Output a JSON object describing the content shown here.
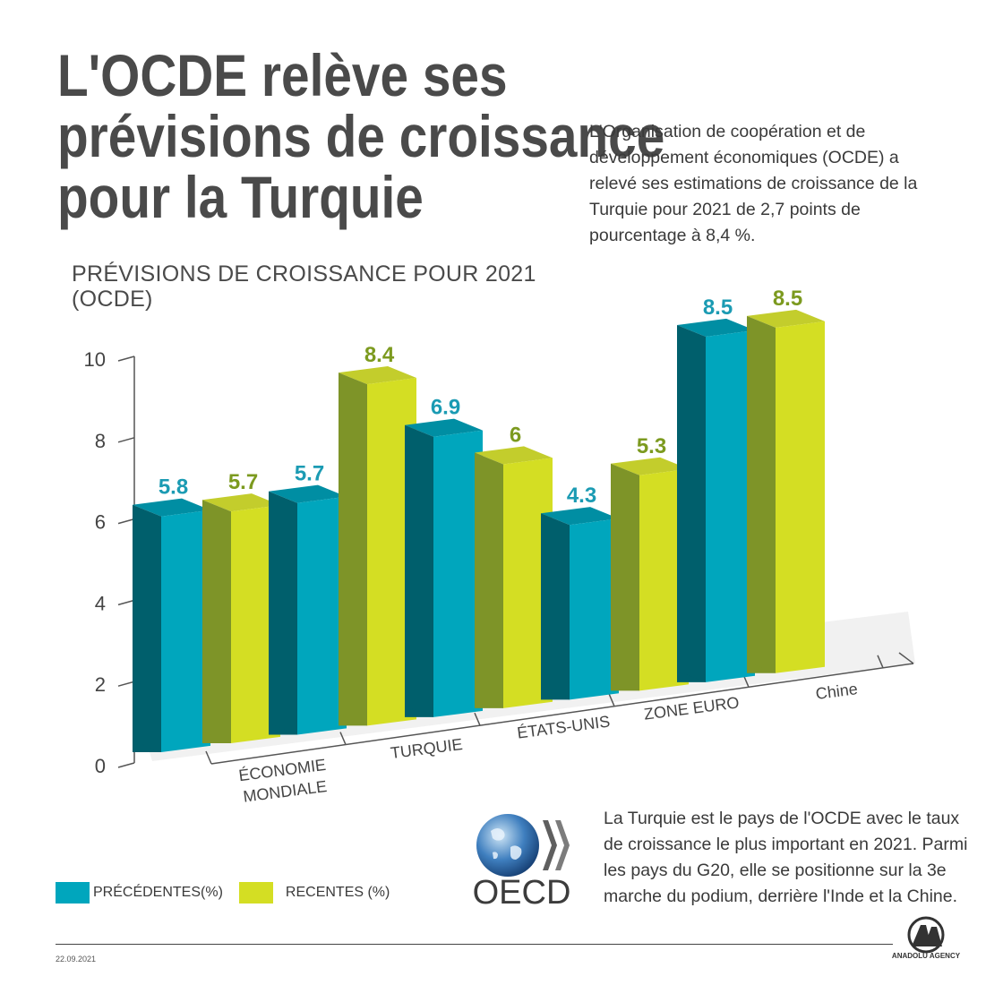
{
  "title": "L'OCDE relève ses prévisions de croissance pour la Turquie",
  "intro": "L'Organisation de coopération et de développement économiques (OCDE) a relevé ses estimations de croissance de la Turquie pour 2021 de 2,7 points de pourcentage à 8,4 %.",
  "chart_data": {
    "type": "bar",
    "title": "PRÉVISIONS DE CROISSANCE POUR 2021 (OCDE)",
    "categories": [
      "ÉCONOMIE MONDIALE",
      "TURQUIE",
      "ÉTATS-UNIS",
      "ZONE EURO",
      "Chine"
    ],
    "series": [
      {
        "name": "PRÉCÉDENTES(%)",
        "values": [
          5.8,
          5.7,
          6.9,
          4.3,
          8.5
        ],
        "labels": [
          "5.8",
          "5.7",
          "6.9",
          "4.3",
          "8.5"
        ]
      },
      {
        "name": "RECENTES (%)",
        "values": [
          5.7,
          8.4,
          6,
          5.3,
          8.5
        ],
        "labels": [
          "5.7",
          "8.4",
          "6",
          "5.3",
          "8.5"
        ]
      }
    ],
    "ylim": [
      0,
      10
    ],
    "yticks": [
      "0",
      "2",
      "4",
      "6",
      "8",
      "10"
    ],
    "colors": {
      "previous": "#00a6bd",
      "recent": "#d4de23",
      "previous_label": "#1b9bb3",
      "recent_label": "#7c9a1f"
    }
  },
  "legend": {
    "previous": "PRÉCÉDENTES(%)",
    "recent": "RECENTES (%)"
  },
  "note": "La Turquie est le pays de l'OCDE avec le taux de croissance le plus important en 2021. Parmi les pays du G20, elle se positionne sur la 3e marche du podium, derrière l'Inde et la Chine.",
  "oecd_logo_text": "OECD",
  "date": "22.09.2021",
  "agency": "ANADOLU AGENCY"
}
